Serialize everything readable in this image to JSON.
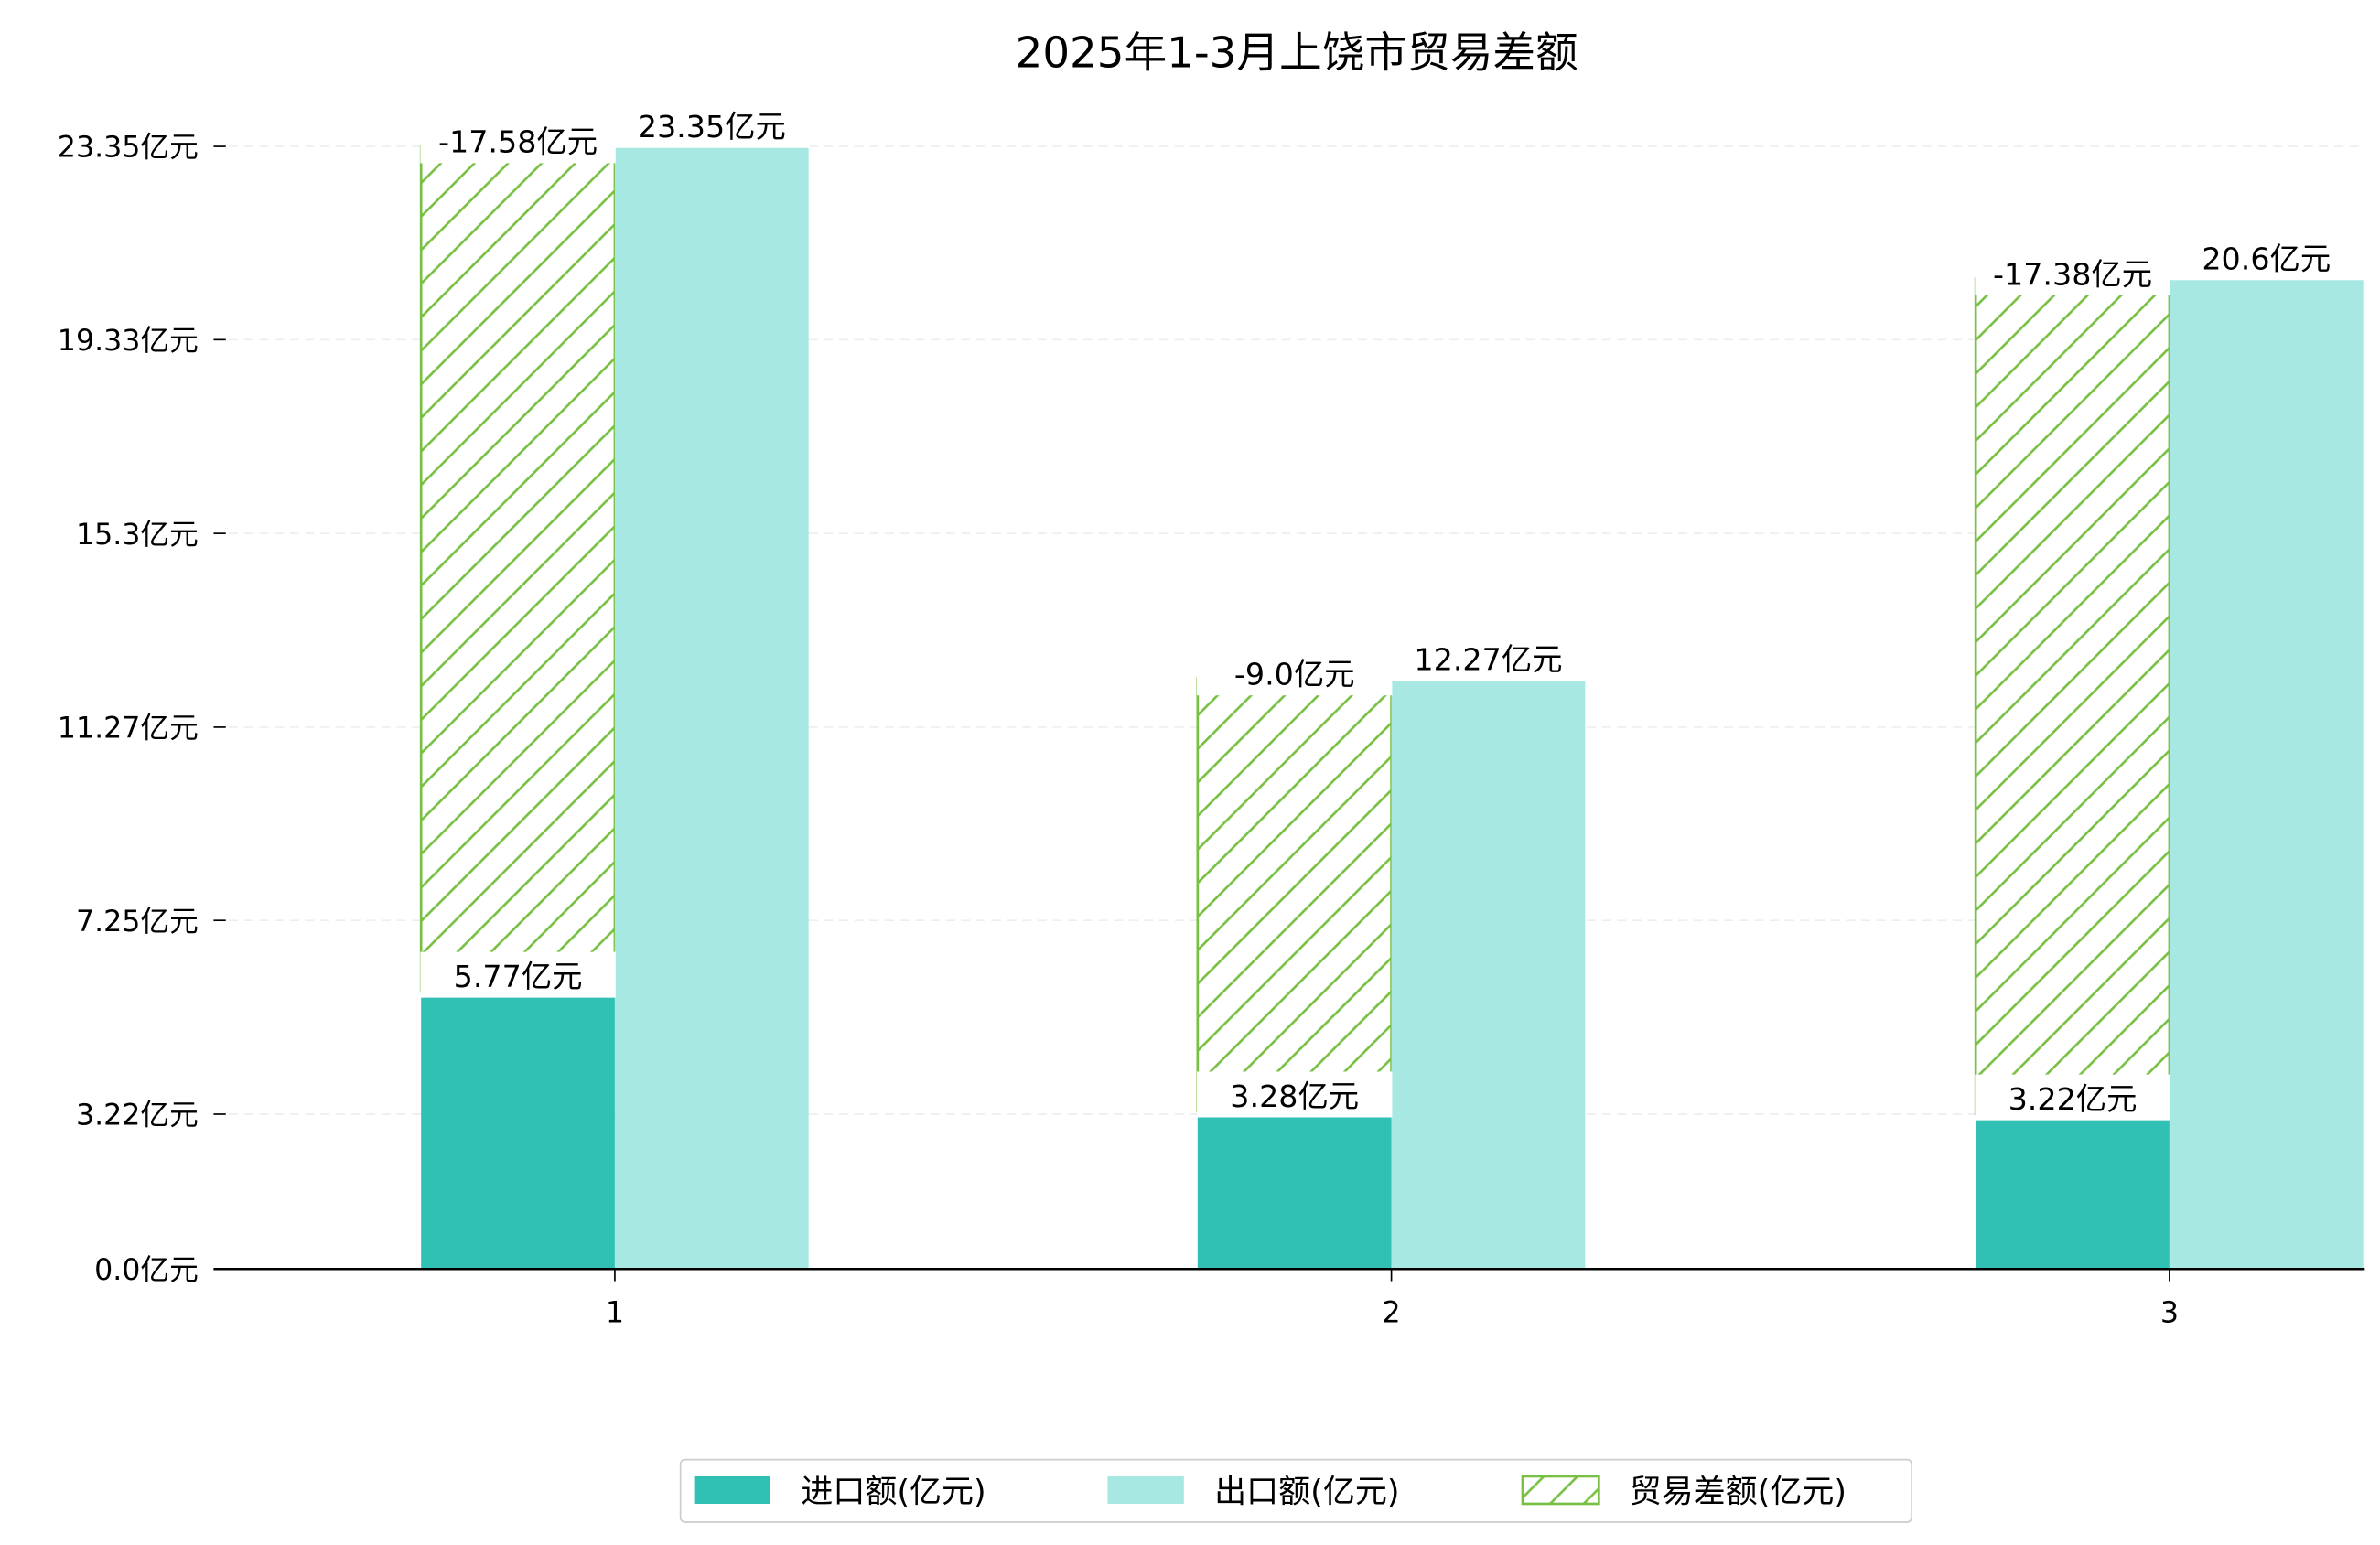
{
  "chart_data": {
    "type": "bar",
    "title": "2025年1-3月上饶市贸易差额",
    "xlabel": "",
    "ylabel": "",
    "categories": [
      "1",
      "2",
      "3"
    ],
    "ylim": [
      0,
      23.35
    ],
    "yticks": [
      0.0,
      3.22,
      7.25,
      11.27,
      15.3,
      19.33,
      23.35
    ],
    "ytick_labels": [
      "0.0亿元",
      "3.22亿元",
      "7.25亿元",
      "11.27亿元",
      "15.3亿元",
      "19.33亿元",
      "23.35亿元"
    ],
    "grid": "horizontal dashed",
    "legend_position": "bottom-center",
    "series": [
      {
        "name": "进口额(亿元)",
        "values": [
          5.77,
          3.28,
          3.22
        ],
        "labels": [
          "5.77亿元",
          "3.28亿元",
          "3.22亿元"
        ],
        "color": "#30c0b4",
        "style": "solid"
      },
      {
        "name": "出口额(亿元)",
        "values": [
          23.35,
          12.27,
          20.6
        ],
        "labels": [
          "23.35亿元",
          "12.27亿元",
          "20.6亿元"
        ],
        "color": "#a8e8e2",
        "style": "solid"
      },
      {
        "name": "贸易差额(亿元)",
        "values": [
          -17.58,
          -9.0,
          -17.38
        ],
        "labels": [
          "-17.58亿元",
          "-9.0亿元",
          "-17.38亿元"
        ],
        "color": "#78c043",
        "style": "hatched, stacked on import"
      }
    ]
  }
}
